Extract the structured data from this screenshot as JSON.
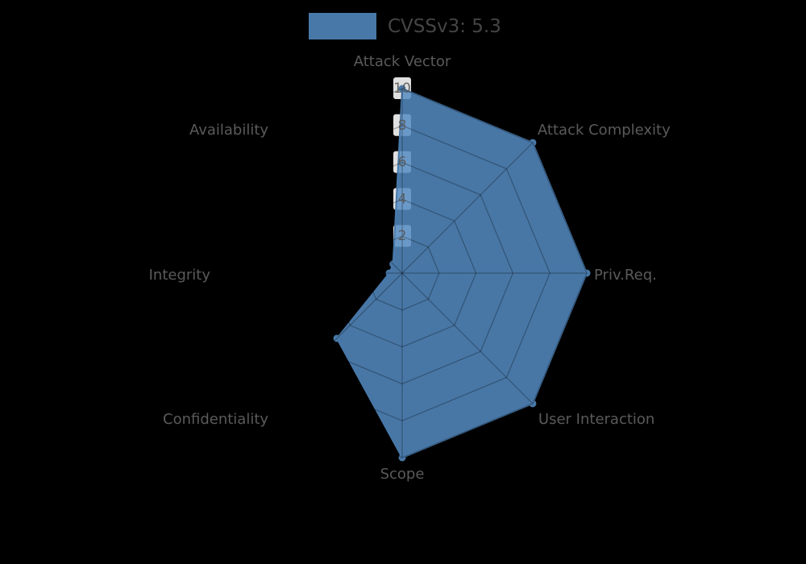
{
  "legend": {
    "label": "CVSSv3: 5.3"
  },
  "chart_data": {
    "type": "radar",
    "title": "",
    "legend_position": "top-center",
    "categories": [
      "Attack Vector",
      "Attack Complexity",
      "Priv.Req.",
      "User Interaction",
      "Scope",
      "Confidentiality",
      "Integrity",
      "Availability"
    ],
    "series": [
      {
        "name": "CVSSv3: 5.3",
        "values": [
          10,
          10,
          10,
          10,
          10,
          5,
          0.7,
          0.7
        ]
      }
    ],
    "axis_range": [
      0,
      10
    ],
    "radial_ticks": [
      2,
      4,
      6,
      8,
      10
    ],
    "grid": true,
    "colors": {
      "series_solid": "#4878a8",
      "series_fill": "rgba(85,140,195,0.85)",
      "grid_line": "rgba(0,0,0,0.28)",
      "tick_box": "rgba(255,255,255,0.88)",
      "tick_text": "#555555",
      "axis_label_text": "#5a5a5a",
      "legend_text": "#454545",
      "background": "#000000"
    }
  }
}
